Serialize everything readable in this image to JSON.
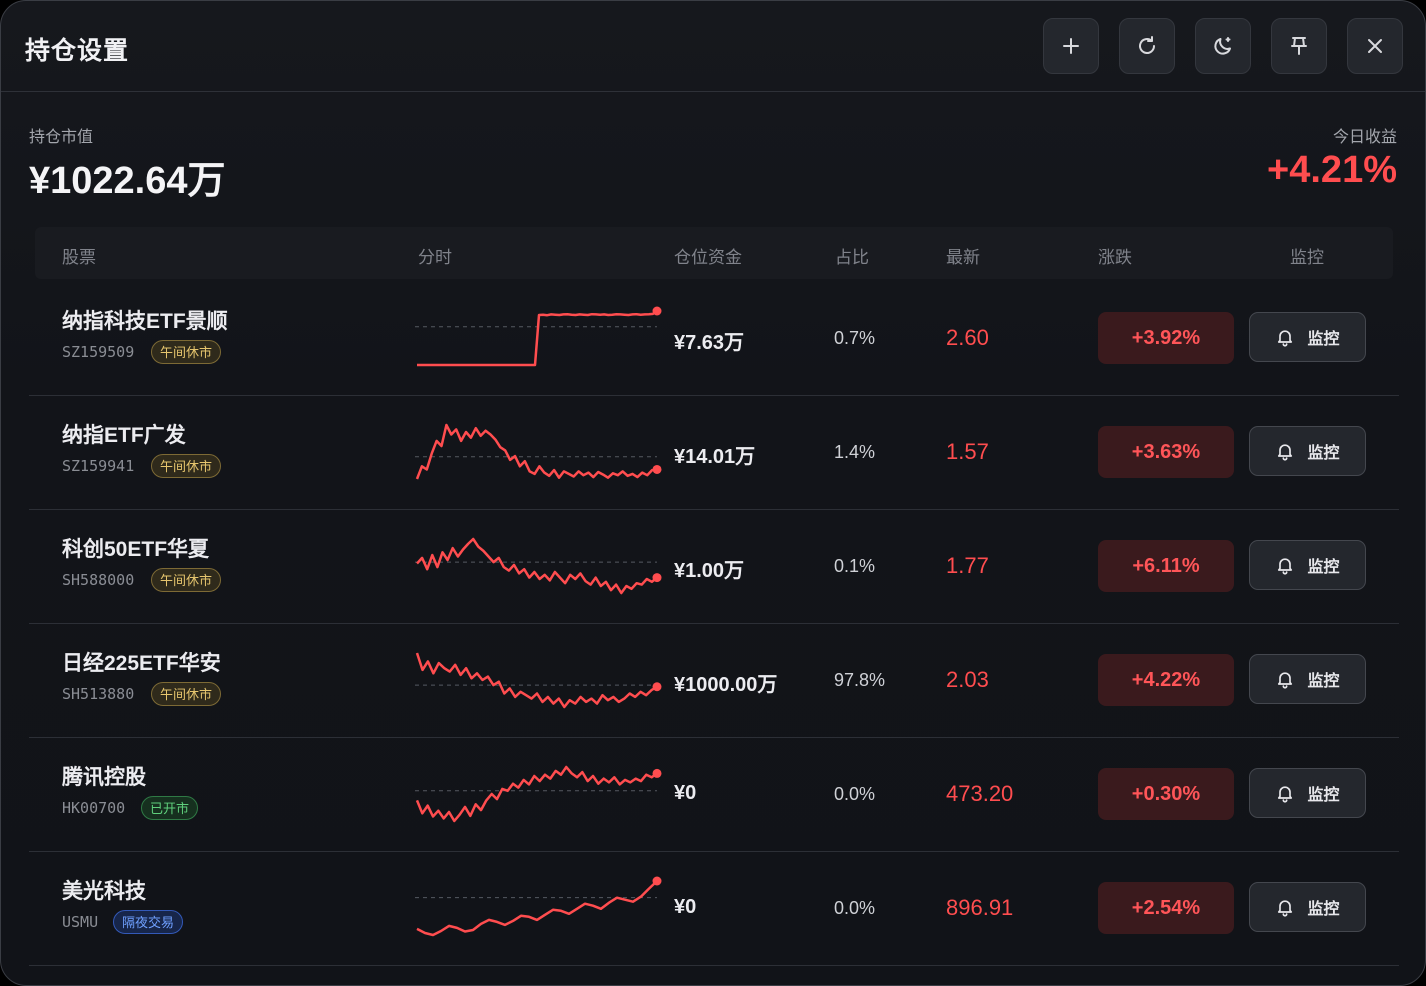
{
  "window": {
    "title": "持仓设置",
    "buttons": [
      {
        "icon": "plus-icon",
        "label": "add"
      },
      {
        "icon": "refresh-icon",
        "label": "refresh"
      },
      {
        "icon": "moon-icon",
        "label": "theme"
      },
      {
        "icon": "pin-icon",
        "label": "pin"
      },
      {
        "icon": "close-icon",
        "label": "close"
      }
    ]
  },
  "summary": {
    "market_value_label": "持仓市值",
    "market_value": "¥1022.64万",
    "today_pnl_label": "今日收益",
    "today_pnl": "+4.21%"
  },
  "table": {
    "headers": {
      "stock": "股票",
      "intraday": "分时",
      "capital": "仓位资金",
      "ratio": "占比",
      "latest": "最新",
      "change": "涨跌",
      "monitor": "监控"
    },
    "rows": [
      {
        "name": "纳指科技ETF景顺",
        "code": "SZ159509",
        "status": "午间休市",
        "status_type": "lunch",
        "capital": "¥7.63万",
        "ratio": "0.7%",
        "latest": "2.60",
        "change": "+3.92%",
        "monitor": "监控",
        "spark": [
          0.55,
          0.55,
          0.55,
          0.55,
          0.55,
          0.55,
          0.55,
          0.55,
          0.55,
          0.55,
          0.55,
          0.55,
          0.55,
          0.55,
          0.55,
          0.55,
          0.55,
          0.55,
          0.55,
          0.55,
          0.55,
          0.55,
          0.55,
          0.55,
          0.55,
          0.55,
          0.55,
          0.55,
          0.55,
          0.55,
          2.45,
          2.46,
          2.44,
          2.47,
          2.46,
          2.45,
          2.47,
          2.48,
          2.46,
          2.45,
          2.47,
          2.46,
          2.45,
          2.48,
          2.47,
          2.46,
          2.47,
          2.45,
          2.46,
          2.48,
          2.47,
          2.46,
          2.45,
          2.47,
          2.48,
          2.46,
          2.47,
          2.48,
          2.49,
          2.6
        ],
        "spark_base": 2.0
      },
      {
        "name": "纳指ETF广发",
        "code": "SZ159941",
        "status": "午间休市",
        "status_type": "lunch",
        "capital": "¥14.01万",
        "ratio": "1.4%",
        "latest": "1.57",
        "change": "+3.63%",
        "monitor": "监控",
        "spark": [
          1.1,
          1.3,
          1.25,
          1.5,
          1.7,
          1.62,
          1.95,
          1.8,
          1.88,
          1.7,
          1.84,
          1.75,
          1.9,
          1.78,
          1.86,
          1.8,
          1.72,
          1.6,
          1.55,
          1.4,
          1.46,
          1.3,
          1.38,
          1.22,
          1.18,
          1.3,
          1.2,
          1.15,
          1.24,
          1.12,
          1.22,
          1.18,
          1.14,
          1.22,
          1.16,
          1.2,
          1.13,
          1.21,
          1.17,
          1.12,
          1.19,
          1.16,
          1.22,
          1.15,
          1.18,
          1.13,
          1.2,
          1.16,
          1.24,
          1.25
        ],
        "spark_base": 1.45
      },
      {
        "name": "科创50ETF华夏",
        "code": "SH588000",
        "status": "午间休市",
        "status_type": "lunch",
        "capital": "¥1.00万",
        "ratio": "0.1%",
        "latest": "1.77",
        "change": "+6.11%",
        "monitor": "监控",
        "spark": [
          1.5,
          1.58,
          1.42,
          1.62,
          1.45,
          1.66,
          1.55,
          1.72,
          1.6,
          1.7,
          1.78,
          1.85,
          1.74,
          1.68,
          1.6,
          1.52,
          1.58,
          1.45,
          1.4,
          1.48,
          1.36,
          1.42,
          1.3,
          1.38,
          1.28,
          1.34,
          1.26,
          1.38,
          1.3,
          1.22,
          1.34,
          1.28,
          1.36,
          1.25,
          1.2,
          1.3,
          1.18,
          1.24,
          1.12,
          1.2,
          1.08,
          1.18,
          1.14,
          1.22,
          1.2,
          1.28,
          1.24,
          1.3
        ],
        "spark_base": 1.52
      },
      {
        "name": "日经225ETF华安",
        "code": "SH513880",
        "status": "午间休市",
        "status_type": "lunch",
        "capital": "¥1000.00万",
        "ratio": "97.8%",
        "latest": "2.03",
        "change": "+4.22%",
        "monitor": "监控",
        "spark": [
          1.9,
          1.7,
          1.8,
          1.66,
          1.78,
          1.72,
          1.68,
          1.76,
          1.64,
          1.72,
          1.6,
          1.66,
          1.58,
          1.62,
          1.52,
          1.56,
          1.42,
          1.48,
          1.38,
          1.44,
          1.4,
          1.36,
          1.42,
          1.32,
          1.38,
          1.3,
          1.36,
          1.26,
          1.34,
          1.3,
          1.38,
          1.32,
          1.36,
          1.3,
          1.4,
          1.34,
          1.38,
          1.32,
          1.36,
          1.42,
          1.38,
          1.44,
          1.4,
          1.46,
          1.5
        ],
        "spark_base": 1.52
      },
      {
        "name": "腾讯控股",
        "code": "HK00700",
        "status": "已开市",
        "status_type": "open",
        "capital": "¥0",
        "ratio": "0.0%",
        "latest": "473.20",
        "change": "+0.30%",
        "monitor": "监控",
        "spark": [
          1.3,
          1.1,
          1.22,
          1.05,
          1.14,
          1.02,
          1.12,
          0.98,
          1.08,
          1.2,
          1.06,
          1.24,
          1.15,
          1.3,
          1.4,
          1.32,
          1.48,
          1.45,
          1.56,
          1.5,
          1.62,
          1.55,
          1.68,
          1.6,
          1.7,
          1.64,
          1.76,
          1.7,
          1.82,
          1.72,
          1.66,
          1.74,
          1.6,
          1.68,
          1.56,
          1.64,
          1.58,
          1.66,
          1.55,
          1.62,
          1.58,
          1.64,
          1.6,
          1.7,
          1.66,
          1.72
        ],
        "spark_base": 1.45
      },
      {
        "name": "美光科技",
        "code": "USMU",
        "status": "隔夜交易",
        "status_type": "night",
        "capital": "¥0",
        "ratio": "0.0%",
        "latest": "896.91",
        "change": "+2.54%",
        "monitor": "监控",
        "spark": [
          1.0,
          0.92,
          0.88,
          0.96,
          1.06,
          1.02,
          0.95,
          0.98,
          1.1,
          1.18,
          1.14,
          1.08,
          1.16,
          1.26,
          1.24,
          1.18,
          1.28,
          1.38,
          1.36,
          1.3,
          1.4,
          1.5,
          1.46,
          1.4,
          1.52,
          1.62,
          1.58,
          1.54,
          1.64,
          1.8,
          1.95
        ],
        "spark_base": 1.62
      }
    ]
  },
  "colors": {
    "up": "#ff4d4f",
    "lunch_badge": "#e6c56e",
    "open_badge": "#5fd07c",
    "night_badge": "#6fa0ff",
    "background": "#121419"
  }
}
